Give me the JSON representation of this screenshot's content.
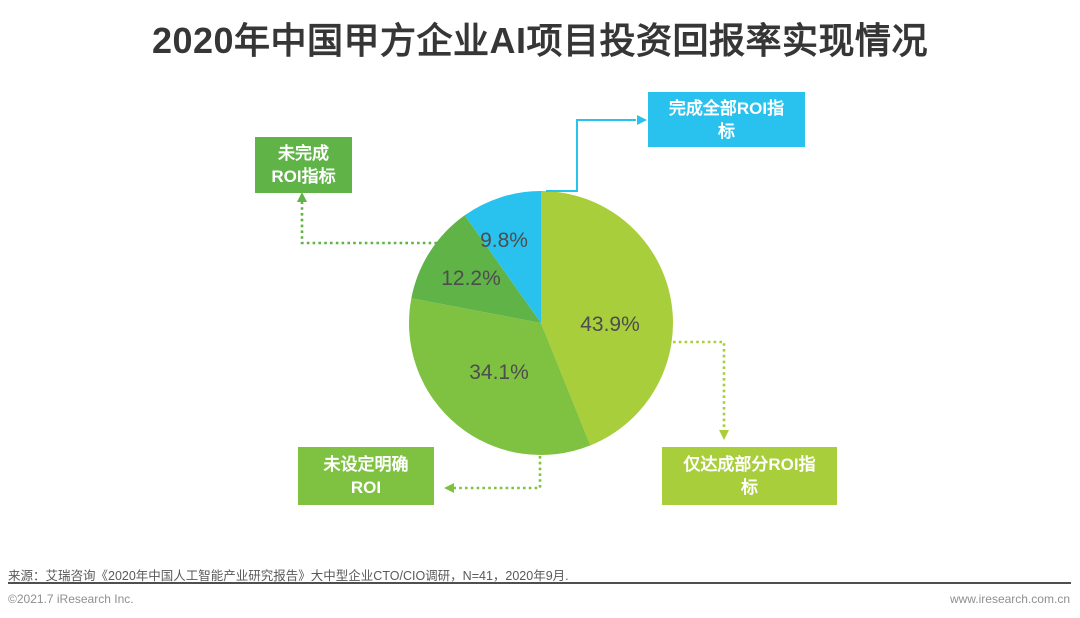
{
  "title": "2020年中国甲方企业AI项目投资回报率实现情况",
  "chart_data": {
    "type": "pie",
    "title": "2020年中国甲方企业AI项目投资回报率实现情况",
    "start_angle_deg": 0,
    "direction": "clockwise",
    "slices": [
      {
        "label": "仅达成部分ROI指标",
        "value": 43.9,
        "display": "43.9%",
        "color": "#a8ce3b"
      },
      {
        "label": "未设定明确ROI",
        "value": 34.1,
        "display": "34.1%",
        "color": "#7fc241"
      },
      {
        "label": "未完成ROI指标",
        "value": 12.2,
        "display": "12.2%",
        "color": "#5fb347"
      },
      {
        "label": "完成全部ROI指标",
        "value": 9.8,
        "display": "9.8%",
        "color": "#29c2ee"
      }
    ],
    "label_color": "#4d4d4d",
    "legend_position": "callout-boxes"
  },
  "callouts": {
    "complete_all": {
      "line1": "完成全部ROI指",
      "line2": "标",
      "color": "#29c2ee"
    },
    "not_complete": {
      "line1": "未完成",
      "line2": "ROI指标",
      "color": "#5fb347"
    },
    "no_roi": {
      "line1": "未设定明确",
      "line2": "ROI",
      "color": "#7fc241"
    },
    "partial": {
      "line1": "仅达成部分ROI指",
      "line2": "标",
      "color": "#a8ce3b"
    }
  },
  "footer": {
    "source": "来源：艾瑞咨询《2020年中国人工智能产业研究报告》大中型企业CTO/CIO调研，N=41，2020年9月.",
    "copyright": "©2021.7 iResearch Inc.",
    "website": "www.iresearch.com.cn"
  }
}
